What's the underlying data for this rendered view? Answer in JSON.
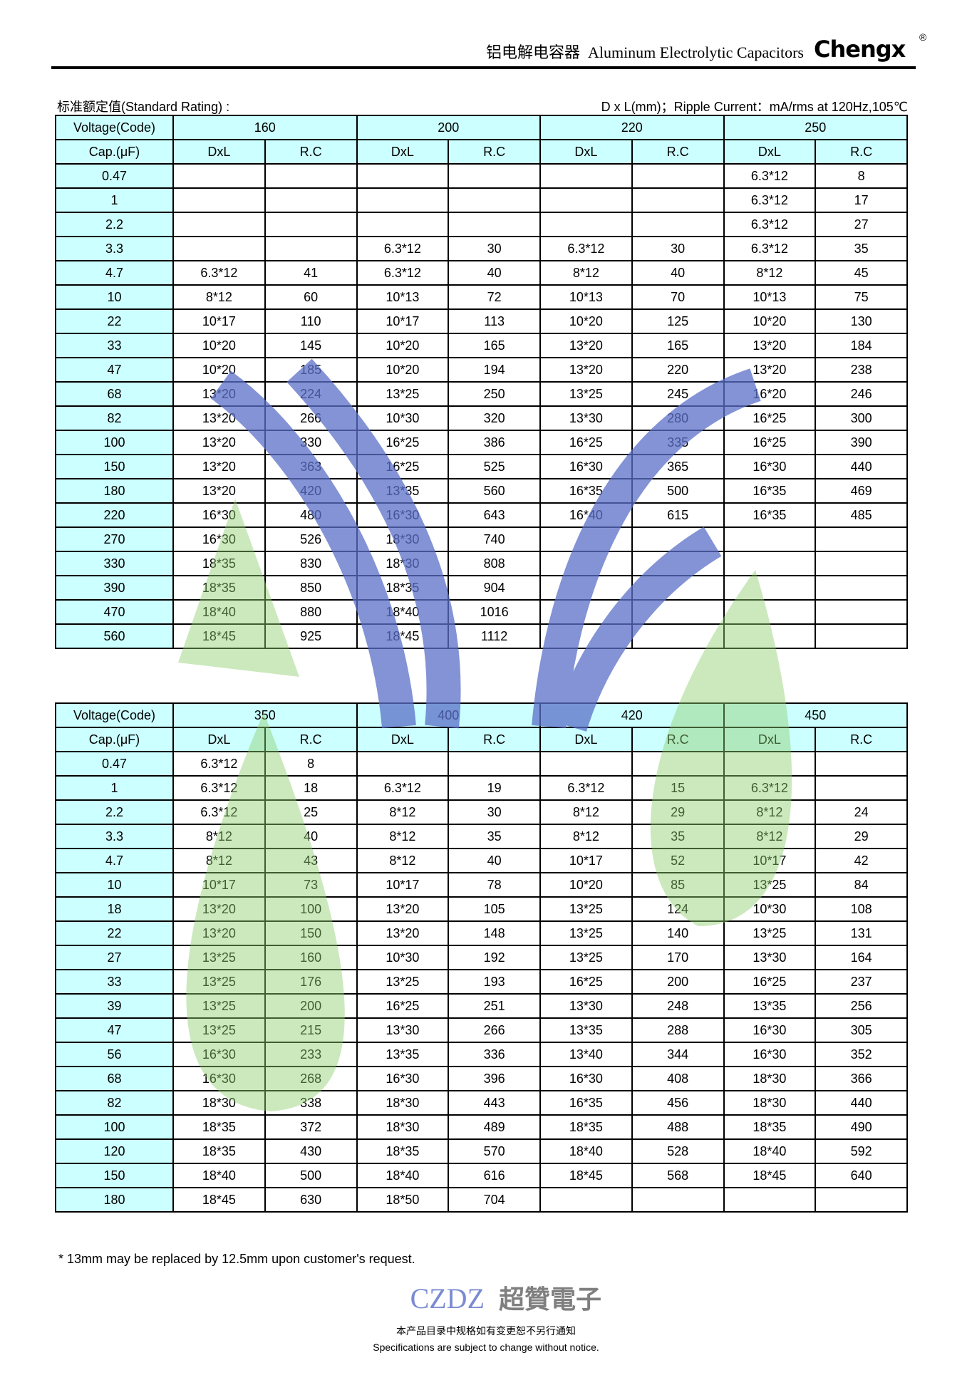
{
  "header": {
    "title_cn": "铝电解电容器",
    "title_en": "Aluminum Electrolytic Capacitors",
    "brand": "Chengx",
    "registered": "®"
  },
  "subtitle_left": "标准额定值(Standard Rating) :",
  "subtitle_right": "D x L(mm)；Ripple Current：mA/rms at 120Hz,105℃",
  "table_labels": {
    "voltage": "Voltage(Code)",
    "cap": "Cap.(μF)",
    "dxl": "DxL",
    "rc": "R.C"
  },
  "table1": {
    "voltages": [
      "160",
      "200",
      "220",
      "250"
    ],
    "rows": [
      [
        "0.47",
        "",
        "",
        "",
        "",
        "",
        "",
        "6.3*12",
        "8"
      ],
      [
        "1",
        "",
        "",
        "",
        "",
        "",
        "",
        "6.3*12",
        "17"
      ],
      [
        "2.2",
        "",
        "",
        "",
        "",
        "",
        "",
        "6.3*12",
        "27"
      ],
      [
        "3.3",
        "",
        "",
        "6.3*12",
        "30",
        "6.3*12",
        "30",
        "6.3*12",
        "35"
      ],
      [
        "4.7",
        "6.3*12",
        "41",
        "6.3*12",
        "40",
        "8*12",
        "40",
        "8*12",
        "45"
      ],
      [
        "10",
        "8*12",
        "60",
        "10*13",
        "72",
        "10*13",
        "70",
        "10*13",
        "75"
      ],
      [
        "22",
        "10*17",
        "110",
        "10*17",
        "113",
        "10*20",
        "125",
        "10*20",
        "130"
      ],
      [
        "33",
        "10*20",
        "145",
        "10*20",
        "165",
        "13*20",
        "165",
        "13*20",
        "184"
      ],
      [
        "47",
        "10*20",
        "185",
        "10*20",
        "194",
        "13*20",
        "220",
        "13*20",
        "238"
      ],
      [
        "68",
        "13*20",
        "224",
        "13*25",
        "250",
        "13*25",
        "245",
        "16*20",
        "246"
      ],
      [
        "82",
        "13*20",
        "266",
        "10*30",
        "320",
        "13*30",
        "280",
        "16*25",
        "300"
      ],
      [
        "100",
        "13*20",
        "330",
        "16*25",
        "386",
        "16*25",
        "335",
        "16*25",
        "390"
      ],
      [
        "150",
        "13*20",
        "363",
        "16*25",
        "525",
        "16*30",
        "365",
        "16*30",
        "440"
      ],
      [
        "180",
        "13*20",
        "420",
        "13*35",
        "560",
        "16*35",
        "500",
        "16*35",
        "469"
      ],
      [
        "220",
        "16*30",
        "480",
        "16*30",
        "643",
        "16*40",
        "615",
        "16*35",
        "485"
      ],
      [
        "270",
        "16*30",
        "526",
        "18*30",
        "740",
        "",
        "",
        "",
        ""
      ],
      [
        "330",
        "18*35",
        "830",
        "18*30",
        "808",
        "",
        "",
        "",
        ""
      ],
      [
        "390",
        "18*35",
        "850",
        "18*35",
        "904",
        "",
        "",
        "",
        ""
      ],
      [
        "470",
        "18*40",
        "880",
        "18*40",
        "1016",
        "",
        "",
        "",
        ""
      ],
      [
        "560",
        "18*45",
        "925",
        "18*45",
        "1112",
        "",
        "",
        "",
        ""
      ]
    ]
  },
  "table2": {
    "voltages": [
      "350",
      "400",
      "420",
      "450"
    ],
    "rows": [
      [
        "0.47",
        "6.3*12",
        "8",
        "",
        "",
        "",
        "",
        "",
        ""
      ],
      [
        "1",
        "6.3*12",
        "18",
        "6.3*12",
        "19",
        "6.3*12",
        "15",
        "6.3*12",
        ""
      ],
      [
        "2.2",
        "6.3*12",
        "25",
        "8*12",
        "30",
        "8*12",
        "29",
        "8*12",
        "24"
      ],
      [
        "3.3",
        "8*12",
        "40",
        "8*12",
        "35",
        "8*12",
        "35",
        "8*12",
        "29"
      ],
      [
        "4.7",
        "8*12",
        "43",
        "8*12",
        "40",
        "10*17",
        "52",
        "10*17",
        "42"
      ],
      [
        "10",
        "10*17",
        "73",
        "10*17",
        "78",
        "10*20",
        "85",
        "13*25",
        "84"
      ],
      [
        "18",
        "13*20",
        "100",
        "13*20",
        "105",
        "13*25",
        "124",
        "10*30",
        "108"
      ],
      [
        "22",
        "13*20",
        "150",
        "13*20",
        "148",
        "13*25",
        "140",
        "13*25",
        "131"
      ],
      [
        "27",
        "13*25",
        "160",
        "10*30",
        "192",
        "13*25",
        "170",
        "13*30",
        "164"
      ],
      [
        "33",
        "13*25",
        "176",
        "13*25",
        "193",
        "16*25",
        "200",
        "16*25",
        "237"
      ],
      [
        "39",
        "13*25",
        "200",
        "16*25",
        "251",
        "13*30",
        "248",
        "13*35",
        "256"
      ],
      [
        "47",
        "13*25",
        "215",
        "13*30",
        "266",
        "13*35",
        "288",
        "16*30",
        "305"
      ],
      [
        "56",
        "16*30",
        "233",
        "13*35",
        "336",
        "13*40",
        "344",
        "16*30",
        "352"
      ],
      [
        "68",
        "16*30",
        "268",
        "16*30",
        "396",
        "16*30",
        "408",
        "18*30",
        "366"
      ],
      [
        "82",
        "18*30",
        "338",
        "18*30",
        "443",
        "16*35",
        "456",
        "18*30",
        "440"
      ],
      [
        "100",
        "18*35",
        "372",
        "18*30",
        "489",
        "18*35",
        "488",
        "18*35",
        "490"
      ],
      [
        "120",
        "18*35",
        "430",
        "18*35",
        "570",
        "18*40",
        "528",
        "18*40",
        "592"
      ],
      [
        "150",
        "18*40",
        "500",
        "18*40",
        "616",
        "18*45",
        "568",
        "18*45",
        "640"
      ],
      [
        "180",
        "18*45",
        "630",
        "18*50",
        "704",
        "",
        "",
        "",
        ""
      ]
    ]
  },
  "footnote": "*  13mm may be replaced by 12.5mm upon customer's request.",
  "footer": {
    "cn": "本产品目录中规格如有变更恕不另行通知",
    "en": "Specifications are subject to change without notice."
  },
  "watermark": {
    "latin": "CZDZ",
    "cn": "超贊電子",
    "colors": {
      "leaf": "#8fcf6f",
      "arc": "#5a6fc8",
      "text": "#555555"
    }
  },
  "colors": {
    "header_fill": "#ccffff"
  }
}
